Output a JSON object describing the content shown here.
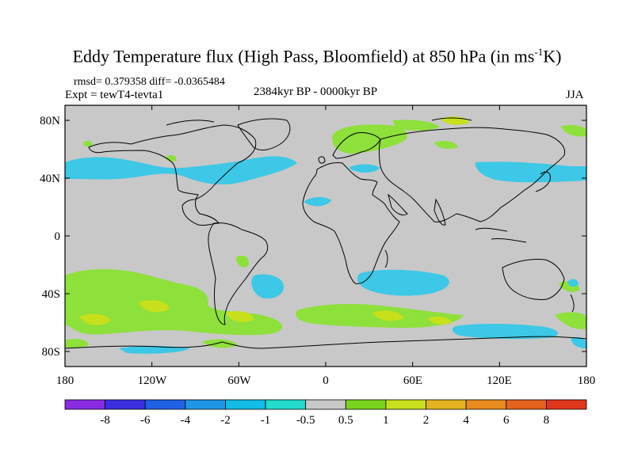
{
  "title_main": "Eddy Temperature flux (High Pass, Bloomfield) at 850 hPa (in ms",
  "title_sup": "-1",
  "title_end": "K)",
  "stats": "rmsd= 0.379358 diff= -0.0365484",
  "expt": "Expt = tewT4-tevta1",
  "period": "2384kyr BP - 0000kyr BP",
  "season": "JJA",
  "lat_labels": [
    "80N",
    "40N",
    "0",
    "40S",
    "80S"
  ],
  "lon_labels": [
    "180",
    "120W",
    "60W",
    "0",
    "60E",
    "120E",
    "180"
  ],
  "colorbar": {
    "labels": [
      "-8",
      "-6",
      "-4",
      "-2",
      "-1",
      "-0.5",
      "0.5",
      "1",
      "2",
      "4",
      "6",
      "8"
    ],
    "colors": [
      "#8a2be2",
      "#3a2fe0",
      "#1f62e6",
      "#1f95e6",
      "#11bde6",
      "#22dccd",
      "#c8c8c8",
      "#78d41c",
      "#c8e01c",
      "#e3b320",
      "#e88a1c",
      "#e3621c",
      "#e0361c"
    ]
  },
  "map_colors": {
    "background": "#c8c8c8",
    "positive_1": "#8ee03a",
    "positive_2": "#c8e01c",
    "positive_4": "#e3b320",
    "negative_1": "#3cc8e6",
    "negative_05": "#22dccd"
  }
}
